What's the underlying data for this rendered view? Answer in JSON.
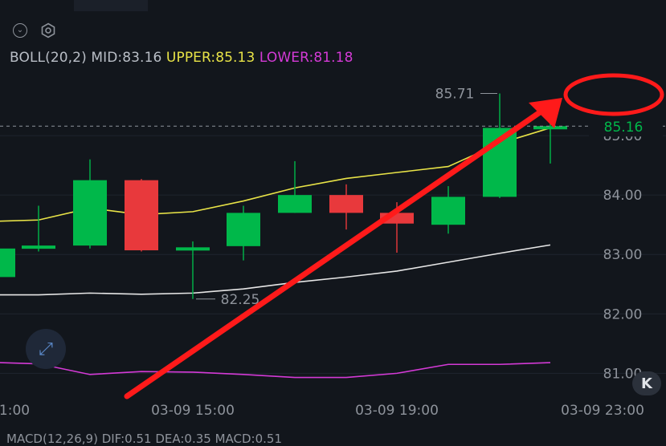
{
  "header": {
    "legend": {
      "name": "BOLL(20,2)",
      "mid": "MID:83.16",
      "upper": "UPPER:85.13",
      "lower": "LOWER:81.18"
    },
    "cut_off_text": "MACD(12,26,9) DIF:0.51 DEA:0.35 MACD:0.51"
  },
  "annotation": {
    "arrow_color": "#ff1a1a",
    "circle_color": "#ff1a1a"
  },
  "colors": {
    "up": "#00b84a",
    "down": "#e8393c",
    "upper_band": "#e8e347",
    "mid_band": "#e6e6e6",
    "lower_band": "#d43ad6",
    "background": "#12161c"
  },
  "chart_data": {
    "type": "candlestick",
    "indicator": "BOLL(20,2)",
    "y_ticks": [
      "85.00",
      "84.00",
      "83.00",
      "82.00",
      "81.00"
    ],
    "ylim": [
      80.6,
      86.0
    ],
    "x_ticks": [
      "1:00",
      "03-09 15:00",
      "03-09 19:00",
      "03-09 23:00"
    ],
    "current_price": "85.16",
    "high_label": "85.71",
    "low_label": "82.25",
    "candles": [
      {
        "o": 82.62,
        "c": 83.1,
        "h": 83.15,
        "l": 82.5
      },
      {
        "o": 83.1,
        "c": 83.15,
        "h": 83.82,
        "l": 83.05
      },
      {
        "o": 83.15,
        "c": 84.25,
        "h": 84.6,
        "l": 83.1
      },
      {
        "o": 84.25,
        "c": 83.07,
        "h": 84.27,
        "l": 83.05
      },
      {
        "o": 83.07,
        "c": 83.12,
        "h": 83.22,
        "l": 82.25
      },
      {
        "o": 83.14,
        "c": 83.7,
        "h": 83.82,
        "l": 82.9
      },
      {
        "o": 83.7,
        "c": 84.0,
        "h": 84.57,
        "l": 83.7
      },
      {
        "o": 84.0,
        "c": 83.7,
        "h": 84.18,
        "l": 83.42
      },
      {
        "o": 83.7,
        "c": 83.52,
        "h": 83.88,
        "l": 83.03
      },
      {
        "o": 83.5,
        "c": 83.97,
        "h": 84.15,
        "l": 83.35
      },
      {
        "o": 83.97,
        "c": 85.13,
        "h": 85.71,
        "l": 83.95
      },
      {
        "o": 85.13,
        "c": 85.16,
        "h": 85.48,
        "l": 84.53
      }
    ],
    "upper": [
      83.56,
      83.58,
      83.78,
      83.67,
      83.72,
      83.9,
      84.12,
      84.28,
      84.38,
      84.48,
      84.87,
      85.13
    ],
    "mid": [
      82.32,
      82.32,
      82.35,
      82.33,
      82.35,
      82.42,
      82.53,
      82.62,
      82.72,
      82.87,
      83.02,
      83.16
    ],
    "lower": [
      81.18,
      81.16,
      80.98,
      81.03,
      81.02,
      80.98,
      80.93,
      80.93,
      81.0,
      81.15,
      81.15,
      81.18
    ]
  }
}
